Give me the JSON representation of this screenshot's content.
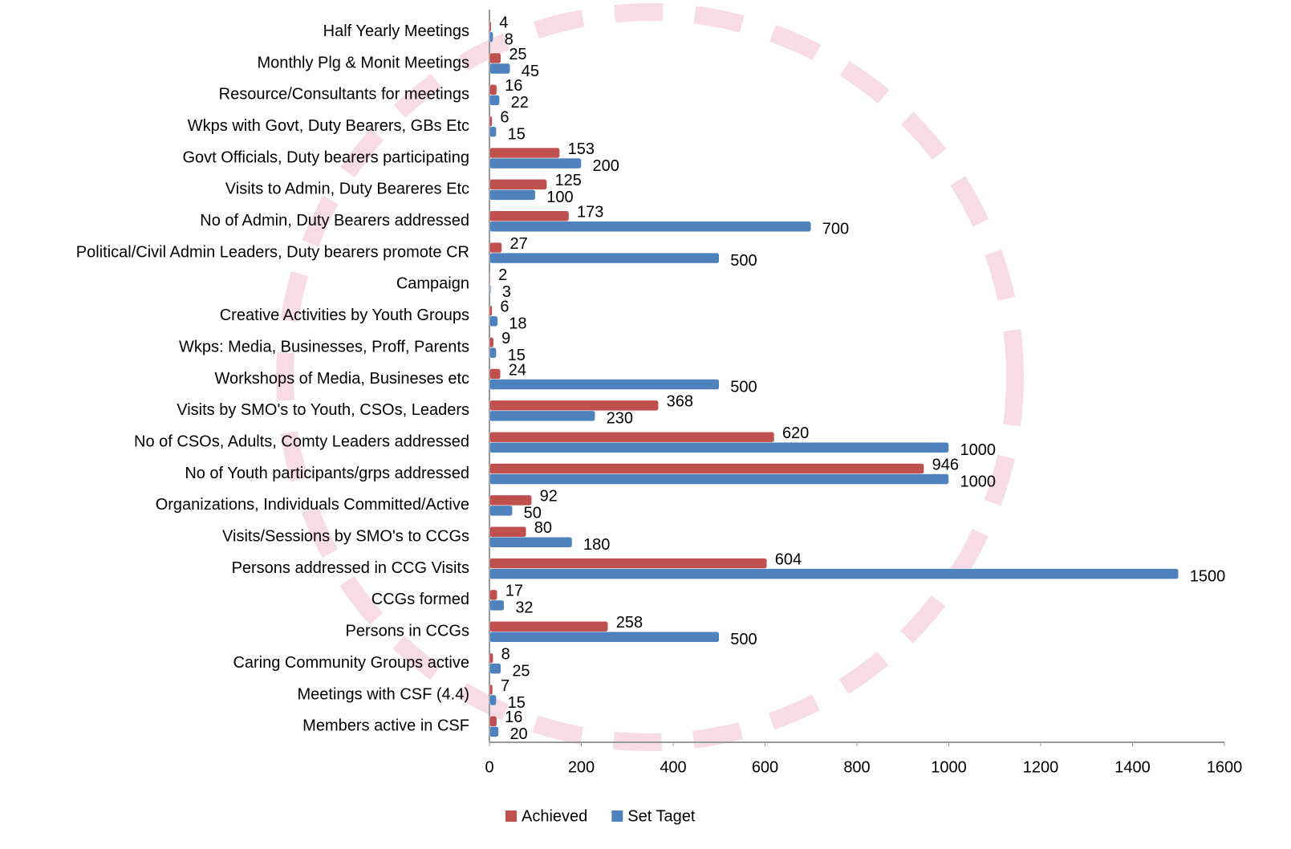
{
  "chart_data": {
    "type": "hbar",
    "categories": [
      "Half Yearly Meetings",
      "Monthly Plg & Monit Meetings",
      "Resource/Consultants for meetings",
      "Wkps with Govt, Duty Bearers, GBs Etc",
      "Govt Officials, Duty bearers participating",
      "Visits to Admin, Duty Beareres Etc",
      "No of Admin, Duty Bearers addressed",
      "Political/Civil Admin Leaders, Duty bearers promote CR",
      "Campaign",
      "Creative Activities by Youth Groups",
      "Wkps: Media, Businesses, Proff, Parents",
      "Workshops of Media, Busineses etc",
      "Visits by SMO's to Youth, CSOs, Leaders",
      "No of CSOs, Adults, Comty Leaders addressed",
      "No of Youth participants/grps addressed",
      "Organizations, Individuals Committed/Active",
      "Visits/Sessions by SMO's to CCGs",
      "Persons addressed in CCG Visits",
      "CCGs formed",
      "Persons in CCGs",
      "Caring Community Groups active",
      "Meetings with CSF (4.4)",
      "Members active in CSF"
    ],
    "series": [
      {
        "name": "Achieved",
        "color": "#c0504d",
        "values": [
          4,
          25,
          16,
          6,
          153,
          125,
          173,
          27,
          2,
          6,
          9,
          24,
          368,
          620,
          946,
          92,
          80,
          604,
          17,
          258,
          8,
          7,
          16
        ]
      },
      {
        "name": "Set Taget",
        "color": "#4f81bd",
        "values": [
          8,
          45,
          22,
          15,
          200,
          100,
          700,
          500,
          3,
          18,
          15,
          500,
          230,
          1000,
          1000,
          50,
          180,
          1500,
          32,
          500,
          25,
          15,
          20
        ]
      }
    ],
    "xlim": [
      0,
      1600
    ],
    "xticks": [
      0,
      200,
      400,
      600,
      800,
      1000,
      1200,
      1400,
      1600
    ],
    "legend": "bottom"
  }
}
